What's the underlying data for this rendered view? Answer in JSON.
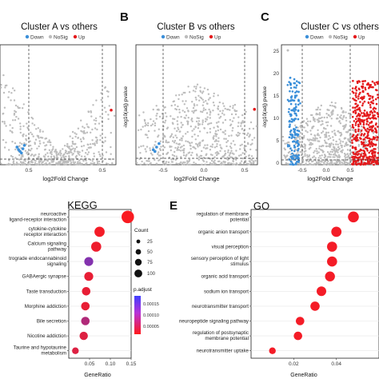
{
  "panels": {
    "b": "B",
    "c": "C",
    "e": "E"
  },
  "volcano_legend": {
    "down": "Down",
    "nosig": "NoSig",
    "up": "Up",
    "colors": {
      "down": "#3b8fd9",
      "nosig": "#bdbdbd",
      "up": "#e41a1c"
    }
  },
  "chart_data": [
    {
      "type": "scatter",
      "title": "Cluster A vs others",
      "xlabel": "log2Fold Change",
      "ylabel": "",
      "x_ticks": [
        "0.5",
        "0.5"
      ],
      "threshold_lines": {
        "x": [
          -0.5,
          0.5
        ],
        "y": 1.3
      },
      "up_points": [
        {
          "x": 0.62,
          "y": 6.5
        }
      ],
      "down_points": [
        {
          "x": -0.62,
          "y": 1.6
        },
        {
          "x": -0.58,
          "y": 1.9
        },
        {
          "x": -0.66,
          "y": 2.1
        },
        {
          "x": -0.6,
          "y": 1.4
        },
        {
          "x": -0.64,
          "y": 1.8
        },
        {
          "x": -0.56,
          "y": 2.3
        }
      ]
    },
    {
      "type": "scatter",
      "title": "Cluster B vs others",
      "xlabel": "log2Fold Change",
      "ylabel": "-log10(adj) pvalue",
      "x_ticks": [
        "-0.5",
        "0.0",
        "0.5"
      ],
      "threshold_lines": {
        "x": [
          -0.5,
          0.5
        ],
        "y": 1.3
      },
      "up_points": [
        {
          "x": 0.62,
          "y": 6.3
        }
      ],
      "down_points": [
        {
          "x": -0.58,
          "y": 2.0
        },
        {
          "x": -0.62,
          "y": 1.7
        },
        {
          "x": -0.55,
          "y": 2.4
        },
        {
          "x": -0.6,
          "y": 1.5
        }
      ]
    },
    {
      "type": "scatter",
      "title": "Cluster C vs others",
      "xlabel": "log2Fold Change",
      "ylabel": "-log10(adj) pvalue",
      "y_ticks": [
        "25",
        "20",
        "15",
        "10",
        "5",
        "0"
      ],
      "x_ticks": [
        "-0.5",
        "0.0",
        "0.5"
      ],
      "threshold_lines": {
        "x": [
          -0.5,
          0.5
        ],
        "y": 1.3
      }
    },
    {
      "type": "scatter",
      "title": "KEGG",
      "xlabel": "GeneRatio",
      "ylabel": "",
      "x_ticks": [
        "0.05",
        "0.10",
        "0.15"
      ],
      "xlim": [
        0.0,
        0.15
      ],
      "categories": [
        "neuroactive ligand-receptor interaction",
        "cytokine-cytokine receptor interaction",
        "Calcium signaling pathway",
        "trograde endocannabinoid signaling",
        "GABAergic synapse",
        "Taste transduction",
        "Morphine addiction",
        "Bile secretion",
        "Nicotine addiction",
        "Taurine and hypotaurine metabolism"
      ],
      "values": [
        0.142,
        0.074,
        0.066,
        0.048,
        0.048,
        0.042,
        0.04,
        0.04,
        0.036,
        0.016
      ],
      "count": [
        60,
        34,
        32,
        22,
        22,
        19,
        18,
        18,
        17,
        8
      ],
      "p_adjust": [
        5e-06,
        1e-05,
        1.5e-05,
        0.00011,
        2e-05,
        2e-05,
        2e-05,
        7e-05,
        3e-05,
        3e-05
      ],
      "legend": {
        "count_title": "Count",
        "count_ticks": [
          "25",
          "50",
          "75",
          "100"
        ],
        "padjust_title": "p.adjust",
        "padjust_ticks": [
          "0.00015",
          "0.00010",
          "0.00005"
        ]
      }
    },
    {
      "type": "scatter",
      "title": "GO",
      "xlabel": "GeneRatio",
      "ylabel": "",
      "x_ticks": [
        "0.02",
        "0.04"
      ],
      "xlim": [
        0.0,
        0.06
      ],
      "categories": [
        "regulation of membrane potential",
        "organic anion transport",
        "visual perception",
        "sensory perception of light stimulus",
        "organic acid transport",
        "sodium ion transport",
        "neurotransmitter transport",
        "neuropeptide signaling pathway",
        "regulation of postsynaptic membrane potential",
        "neurotransmitter uptake"
      ],
      "values": [
        0.048,
        0.04,
        0.038,
        0.038,
        0.037,
        0.033,
        0.03,
        0.023,
        0.022,
        0.01
      ],
      "count": [
        40,
        34,
        32,
        32,
        31,
        28,
        25,
        19,
        18,
        8
      ],
      "p_adjust": [
        1e-05,
        1e-05,
        1e-05,
        1e-05,
        1e-05,
        1e-05,
        1e-05,
        1e-05,
        1e-05,
        1e-05
      ]
    }
  ]
}
